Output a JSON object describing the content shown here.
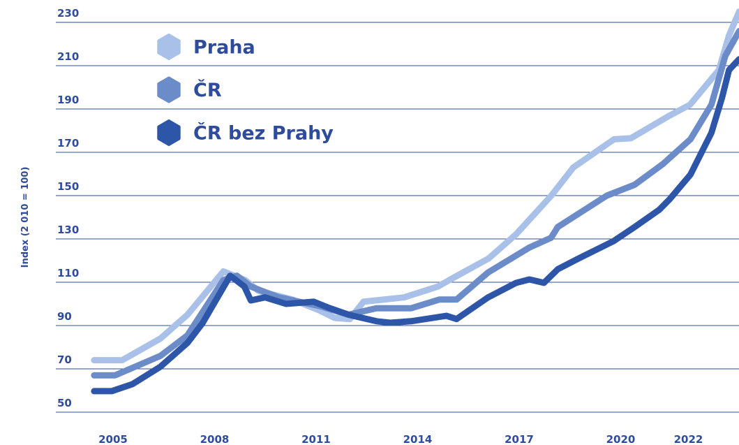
{
  "chart_data": {
    "type": "line",
    "y_label": "Index (2 010 = 100)",
    "xlim": [
      2004.3,
      2023.5
    ],
    "xticks": [
      2005,
      2008,
      2011,
      2014,
      2017,
      2020,
      2022
    ],
    "ylim": [
      50,
      235
    ],
    "yticks": [
      50,
      70,
      90,
      110,
      130,
      150,
      170,
      190,
      210,
      230
    ],
    "grid": true,
    "legend": "top-left",
    "series": [
      {
        "name": "Praha",
        "color": "#a9c1e8",
        "x": [
          2004.44,
          2005.27,
          2006.4,
          2007.2,
          2008.26,
          2008.9,
          2009.3,
          2010.3,
          2011.1,
          2011.55,
          2012.0,
          2012.4,
          2013.6,
          2014.6,
          2015.05,
          2016.1,
          2016.9,
          2017.95,
          2018.6,
          2019.8,
          2020.3,
          2021.45,
          2022.05,
          2022.9,
          2023.2,
          2023.5
        ],
        "values": [
          74,
          74,
          84,
          95,
          115,
          111,
          106,
          102,
          97,
          93.5,
          93,
          101,
          103,
          108,
          112,
          121,
          132,
          150,
          163,
          176,
          176.5,
          187,
          192,
          208,
          224,
          235
        ]
      },
      {
        "name": "ČR",
        "color": "#6b8cc9",
        "x": [
          2004.44,
          2005.06,
          2006.4,
          2007.2,
          2008.26,
          2008.66,
          2009.07,
          2009.9,
          2011.1,
          2011.96,
          2012.78,
          2013.81,
          2014.64,
          2015.15,
          2016.08,
          2017.3,
          2017.94,
          2018.14,
          2019.59,
          2020.41,
          2021.24,
          2022.06,
          2022.68,
          2023.09,
          2023.5
        ],
        "values": [
          67,
          67,
          76,
          85.5,
          111,
          113,
          108,
          103,
          99,
          95,
          98,
          98,
          102,
          102,
          114.5,
          126,
          130.5,
          135.5,
          150,
          155,
          164.5,
          176,
          192,
          214.5,
          226
        ]
      },
      {
        "name": "ČR bez Prahy",
        "color": "#2e56a8",
        "x": [
          2004.44,
          2004.96,
          2005.58,
          2006.4,
          2007.2,
          2007.64,
          2008.46,
          2008.88,
          2009.07,
          2009.49,
          2010.11,
          2010.93,
          2011.34,
          2011.96,
          2012.78,
          2013.19,
          2013.81,
          2014.85,
          2015.15,
          2016.08,
          2016.91,
          2017.3,
          2017.73,
          2018.14,
          2018.76,
          2019.79,
          2020.41,
          2021.14,
          2021.45,
          2022.06,
          2022.68,
          2022.99,
          2023.2,
          2023.5
        ],
        "values": [
          59.7,
          59.7,
          63,
          71,
          82,
          91,
          113,
          108,
          101.6,
          103,
          100,
          101,
          98.4,
          95,
          92,
          91.3,
          92,
          94.5,
          93,
          103,
          109.7,
          111.3,
          109.7,
          116,
          121,
          129,
          135.5,
          143.5,
          148.4,
          159.7,
          179,
          195,
          208,
          213
        ]
      }
    ]
  }
}
